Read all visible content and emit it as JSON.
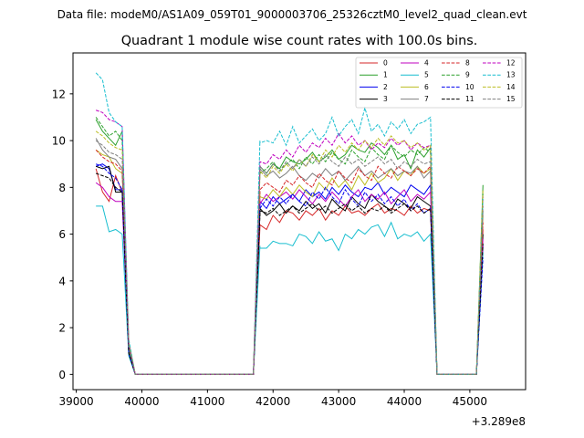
{
  "chart_data": {
    "type": "line",
    "suptitle": "Data file: modeM0/AS1A09_059T01_9000003706_25326cztM0_level2_quad_clean.evt",
    "title": "Quadrant 1 module wise count rates with 100.0s bins.",
    "xlabel": "",
    "ylabel": "",
    "x_offset_label": "+3.289e8",
    "xlim": [
      38950,
      45850
    ],
    "ylim": [
      -0.65,
      13.75
    ],
    "xticks": [
      39000,
      40000,
      41000,
      42000,
      43000,
      44000,
      45000
    ],
    "xtick_labels": [
      "39000",
      "40000",
      "41000",
      "42000",
      "43000",
      "44000",
      "45000"
    ],
    "yticks": [
      0,
      2,
      4,
      6,
      8,
      10,
      12
    ],
    "ytick_labels": [
      "0",
      "2",
      "4",
      "6",
      "8",
      "10",
      "12"
    ],
    "grid": false,
    "legend_position": "top-right",
    "legend_columns": 4,
    "segments": [
      {
        "x_start": 39300,
        "x_step": 100,
        "count": 5
      },
      {
        "x_start": 39800,
        "x_step": 100,
        "count": 2
      },
      {
        "x_start": 39900,
        "x_step": 100,
        "count": 18
      },
      {
        "x_start": 41700,
        "x_step": 100,
        "count": 2
      },
      {
        "x_start": 41800,
        "x_step": 100,
        "count": 27
      },
      {
        "x_start": 44500,
        "x_step": 100,
        "count": 2
      },
      {
        "x_start": 44600,
        "x_step": 100,
        "count": 9
      },
      {
        "x_start": 45500,
        "x_step": 100,
        "count": 1
      }
    ],
    "series": [
      {
        "name": "0",
        "color": "#d62728",
        "dash": "solid",
        "values": [
          8.8,
          7.8,
          7.4,
          8.5,
          7.8,
          1.2,
          0,
          0,
          0,
          0,
          0,
          0,
          0,
          0,
          0,
          0,
          0,
          0,
          0,
          0,
          0,
          0,
          0,
          0,
          0,
          0,
          6.3,
          6.4,
          6.2,
          6.8,
          6.5,
          7.0,
          6.9,
          6.6,
          7.0,
          6.8,
          7.1,
          6.6,
          7.0,
          6.8,
          7.2,
          6.9,
          7.0,
          6.8,
          7.1,
          7.3,
          6.9,
          7.1,
          7.0,
          6.8,
          7.2,
          6.9,
          7.1,
          7.0,
          0,
          0,
          0,
          0,
          0,
          0,
          0,
          0,
          6.2
        ]
      },
      {
        "name": "1",
        "color": "#2ca02c",
        "dash": "solid",
        "values": [
          10.9,
          10.4,
          10.1,
          9.8,
          10.4,
          1.0,
          0,
          0,
          0,
          0,
          0,
          0,
          0,
          0,
          0,
          0,
          0,
          0,
          0,
          0,
          0,
          0,
          0,
          0,
          0,
          0,
          8.8,
          8.9,
          8.6,
          9.0,
          8.8,
          9.3,
          9.1,
          9.0,
          9.2,
          9.5,
          9.1,
          9.3,
          9.6,
          9.2,
          9.4,
          9.8,
          9.6,
          9.5,
          9.9,
          9.7,
          9.4,
          9.8,
          9.2,
          9.4,
          8.8,
          9.6,
          9.3,
          9.7,
          0,
          0,
          0,
          0,
          0,
          0,
          0,
          0,
          8.1
        ]
      },
      {
        "name": "2",
        "color": "#0000ee",
        "dash": "solid",
        "values": [
          8.9,
          9.0,
          8.8,
          7.9,
          7.9,
          0.9,
          0,
          0,
          0,
          0,
          0,
          0,
          0,
          0,
          0,
          0,
          0,
          0,
          0,
          0,
          0,
          0,
          0,
          0,
          0,
          0,
          7.2,
          7.4,
          7.1,
          7.6,
          7.3,
          7.5,
          7.7,
          7.4,
          7.9,
          7.6,
          7.8,
          7.5,
          8.0,
          7.7,
          8.1,
          7.8,
          7.6,
          8.0,
          7.9,
          8.2,
          7.7,
          8.0,
          7.8,
          7.6,
          8.1,
          7.9,
          7.7,
          8.1,
          0,
          0,
          0,
          0,
          0,
          0,
          0,
          0,
          5.5
        ]
      },
      {
        "name": "3",
        "color": "#000000",
        "dash": "solid",
        "values": [
          8.9,
          8.8,
          8.9,
          7.8,
          7.8,
          0.9,
          0,
          0,
          0,
          0,
          0,
          0,
          0,
          0,
          0,
          0,
          0,
          0,
          0,
          0,
          0,
          0,
          0,
          0,
          0,
          0,
          6.9,
          7.1,
          6.8,
          7.0,
          7.3,
          6.9,
          7.2,
          7.0,
          7.4,
          7.1,
          7.3,
          6.9,
          7.5,
          7.2,
          7.0,
          7.6,
          7.3,
          7.1,
          7.7,
          7.4,
          7.2,
          7.0,
          7.5,
          7.3,
          7.1,
          7.6,
          7.4,
          7.2,
          0,
          0,
          0,
          0,
          0,
          0,
          0,
          0,
          6.0
        ]
      },
      {
        "name": "4",
        "color": "#bf00bf",
        "dash": "solid",
        "values": [
          8.2,
          8.0,
          7.6,
          7.4,
          7.4,
          0.9,
          0,
          0,
          0,
          0,
          0,
          0,
          0,
          0,
          0,
          0,
          0,
          0,
          0,
          0,
          0,
          0,
          0,
          0,
          0,
          0,
          7.5,
          7.3,
          7.7,
          7.4,
          7.6,
          7.8,
          7.5,
          7.9,
          7.6,
          7.3,
          7.7,
          7.4,
          7.8,
          7.5,
          7.2,
          7.6,
          7.9,
          7.4,
          7.7,
          7.5,
          7.8,
          7.3,
          7.6,
          7.9,
          7.4,
          7.7,
          7.5,
          7.8,
          0,
          0,
          0,
          0,
          0,
          0,
          0,
          0,
          5.8
        ]
      },
      {
        "name": "5",
        "color": "#17becf",
        "dash": "solid",
        "values": [
          7.2,
          7.2,
          6.1,
          6.2,
          6.0,
          0.8,
          0,
          0,
          0,
          0,
          0,
          0,
          0,
          0,
          0,
          0,
          0,
          0,
          0,
          0,
          0,
          0,
          0,
          0,
          0,
          0,
          5.5,
          5.4,
          5.4,
          5.7,
          5.6,
          5.6,
          5.5,
          6.0,
          5.9,
          5.6,
          6.1,
          5.7,
          5.8,
          5.3,
          6.0,
          5.8,
          6.2,
          6.0,
          6.3,
          6.4,
          5.9,
          6.5,
          5.8,
          6.0,
          5.9,
          6.1,
          5.7,
          6.0,
          0,
          0,
          0,
          0,
          0,
          0,
          0,
          0,
          5.2
        ]
      },
      {
        "name": "6",
        "color": "#bcbd22",
        "dash": "solid",
        "values": [
          9.6,
          9.4,
          9.3,
          8.8,
          8.6,
          1.4,
          0,
          0,
          0,
          0,
          0,
          0,
          0,
          0,
          0,
          0,
          0,
          0,
          0,
          0,
          0,
          0,
          0,
          0,
          0,
          0,
          7.8,
          7.6,
          7.5,
          7.9,
          7.6,
          8.0,
          7.7,
          8.1,
          7.8,
          7.6,
          8.2,
          7.9,
          8.4,
          8.0,
          8.3,
          7.9,
          8.5,
          8.1,
          8.6,
          8.2,
          8.4,
          8.8,
          8.3,
          8.7,
          8.5,
          8.9,
          8.6,
          8.8,
          0,
          0,
          0,
          0,
          0,
          0,
          0,
          0,
          6.8
        ]
      },
      {
        "name": "7",
        "color": "#7f7f7f",
        "dash": "solid",
        "values": [
          10.1,
          9.6,
          9.3,
          9.2,
          8.8,
          1.3,
          0,
          0,
          0,
          0,
          0,
          0,
          0,
          0,
          0,
          0,
          0,
          0,
          0,
          0,
          0,
          0,
          0,
          0,
          0,
          0,
          8.6,
          8.8,
          8.5,
          8.7,
          8.4,
          8.6,
          8.9,
          8.5,
          8.3,
          8.6,
          8.4,
          8.8,
          8.5,
          8.7,
          8.3,
          8.6,
          8.9,
          8.5,
          8.7,
          8.4,
          8.6,
          8.8,
          8.5,
          8.7,
          8.6,
          8.9,
          8.4,
          8.7,
          0,
          0,
          0,
          0,
          0,
          0,
          0,
          0,
          7.0
        ]
      },
      {
        "name": "8",
        "color": "#d62728",
        "dash": "dashed",
        "values": [
          9.6,
          9.3,
          9.1,
          9.0,
          8.7,
          1.3,
          0,
          0,
          0,
          0,
          0,
          0,
          0,
          0,
          0,
          0,
          0,
          0,
          0,
          0,
          0,
          0,
          0,
          0,
          0,
          0,
          7.7,
          7.9,
          8.2,
          8.0,
          7.8,
          8.3,
          8.1,
          8.5,
          8.2,
          8.0,
          8.6,
          8.3,
          8.1,
          8.7,
          8.4,
          8.2,
          8.8,
          8.5,
          8.3,
          8.9,
          8.6,
          8.4,
          8.9,
          8.7,
          8.5,
          8.8,
          8.6,
          8.9,
          0,
          0,
          0,
          0,
          0,
          0,
          0,
          0,
          6.5
        ]
      },
      {
        "name": "9",
        "color": "#2ca02c",
        "dash": "dashed",
        "values": [
          11.0,
          10.6,
          10.2,
          10.4,
          10.0,
          1.2,
          0,
          0,
          0,
          0,
          0,
          0,
          0,
          0,
          0,
          0,
          0,
          0,
          0,
          0,
          0,
          0,
          0,
          0,
          0,
          0,
          8.9,
          8.6,
          8.8,
          9.1,
          8.7,
          9.0,
          9.2,
          8.8,
          9.3,
          9.0,
          9.4,
          9.1,
          9.5,
          9.2,
          9.0,
          9.6,
          9.3,
          9.1,
          9.7,
          9.4,
          9.2,
          9.8,
          9.5,
          9.3,
          9.6,
          9.4,
          9.7,
          9.5,
          0,
          0,
          0,
          0,
          0,
          0,
          0,
          0,
          7.8
        ]
      },
      {
        "name": "10",
        "color": "#0000ee",
        "dash": "dashed",
        "values": [
          9.0,
          8.9,
          8.6,
          8.4,
          7.9,
          0.9,
          0,
          0,
          0,
          0,
          0,
          0,
          0,
          0,
          0,
          0,
          0,
          0,
          0,
          0,
          0,
          0,
          0,
          0,
          0,
          0,
          7.3,
          7.1,
          7.5,
          7.2,
          7.6,
          7.3,
          7.7,
          7.4,
          7.2,
          7.8,
          7.5,
          8.0,
          7.6,
          7.3,
          7.9,
          7.5,
          7.2,
          7.8,
          7.4,
          7.7,
          7.3,
          7.6,
          7.2,
          7.5,
          7.0,
          7.3,
          6.9,
          7.1,
          0,
          0,
          0,
          0,
          0,
          0,
          0,
          0,
          5.0
        ]
      },
      {
        "name": "11",
        "color": "#000000",
        "dash": "dashed",
        "values": [
          8.6,
          8.5,
          8.4,
          8.0,
          7.8,
          0.9,
          0,
          0,
          0,
          0,
          0,
          0,
          0,
          0,
          0,
          0,
          0,
          0,
          0,
          0,
          0,
          0,
          0,
          0,
          0,
          0,
          6.8,
          7.0,
          6.9,
          7.1,
          6.8,
          7.0,
          7.2,
          6.9,
          7.1,
          7.3,
          7.0,
          7.2,
          6.9,
          7.1,
          7.3,
          7.0,
          7.2,
          6.9,
          7.1,
          7.0,
          7.2,
          6.9,
          7.1,
          7.3,
          7.0,
          7.2,
          6.9,
          7.1,
          0,
          0,
          0,
          0,
          0,
          0,
          0,
          0,
          5.6
        ]
      },
      {
        "name": "12",
        "color": "#bf00bf",
        "dash": "dashed",
        "values": [
          11.3,
          11.2,
          10.9,
          10.8,
          10.6,
          1.3,
          0,
          0,
          0,
          0,
          0,
          0,
          0,
          0,
          0,
          0,
          0,
          0,
          0,
          0,
          0,
          0,
          0,
          0,
          0,
          0,
          8.9,
          9.1,
          9.0,
          9.4,
          9.2,
          9.6,
          9.3,
          9.8,
          9.5,
          9.9,
          9.7,
          10.1,
          9.8,
          10.3,
          9.9,
          10.2,
          9.8,
          10.0,
          9.6,
          9.9,
          9.7,
          10.1,
          9.8,
          10.0,
          9.6,
          9.9,
          9.7,
          9.8,
          0,
          0,
          0,
          0,
          0,
          0,
          0,
          0,
          7.6
        ]
      },
      {
        "name": "13",
        "color": "#17becf",
        "dash": "dashed",
        "values": [
          12.9,
          12.6,
          11.2,
          10.8,
          10.6,
          1.5,
          0,
          0,
          0,
          0,
          0,
          0,
          0,
          0,
          0,
          0,
          0,
          0,
          0,
          0,
          0,
          0,
          0,
          0,
          0,
          0,
          10.0,
          9.9,
          10.0,
          9.9,
          10.4,
          9.8,
          10.6,
          9.9,
          10.2,
          10.5,
          10.0,
          10.3,
          11.0,
          10.2,
          10.6,
          10.9,
          10.3,
          11.4,
          10.4,
          10.7,
          10.2,
          10.8,
          10.5,
          10.9,
          10.3,
          10.7,
          10.8,
          11.0,
          0,
          0,
          0,
          0,
          0,
          0,
          0,
          0,
          7.5
        ]
      },
      {
        "name": "14",
        "color": "#bcbd22",
        "dash": "dashed",
        "values": [
          10.4,
          10.2,
          9.9,
          9.7,
          9.6,
          1.3,
          0,
          0,
          0,
          0,
          0,
          0,
          0,
          0,
          0,
          0,
          0,
          0,
          0,
          0,
          0,
          0,
          0,
          0,
          0,
          0,
          8.5,
          8.7,
          8.4,
          8.9,
          8.6,
          9.0,
          8.7,
          9.2,
          8.9,
          9.4,
          9.1,
          9.6,
          9.3,
          9.8,
          9.5,
          9.9,
          9.6,
          10.0,
          9.7,
          10.1,
          9.8,
          10.2,
          9.9,
          10.0,
          9.7,
          9.9,
          9.6,
          9.8,
          0,
          0,
          0,
          0,
          0,
          0,
          0,
          0,
          7.9
        ]
      },
      {
        "name": "15",
        "color": "#7f7f7f",
        "dash": "dashed",
        "values": [
          10.0,
          9.8,
          9.5,
          9.4,
          9.2,
          1.2,
          0,
          0,
          0,
          0,
          0,
          0,
          0,
          0,
          0,
          0,
          0,
          0,
          0,
          0,
          0,
          0,
          0,
          0,
          0,
          0,
          8.7,
          8.9,
          8.6,
          9.0,
          8.7,
          9.1,
          8.8,
          9.2,
          8.9,
          9.3,
          9.0,
          9.4,
          9.1,
          8.9,
          9.3,
          9.0,
          9.2,
          8.9,
          9.1,
          9.3,
          9.0,
          9.2,
          8.8,
          9.1,
          8.9,
          9.2,
          9.0,
          9.1,
          0,
          0,
          0,
          0,
          0,
          0,
          0,
          0,
          7.2
        ]
      }
    ]
  }
}
